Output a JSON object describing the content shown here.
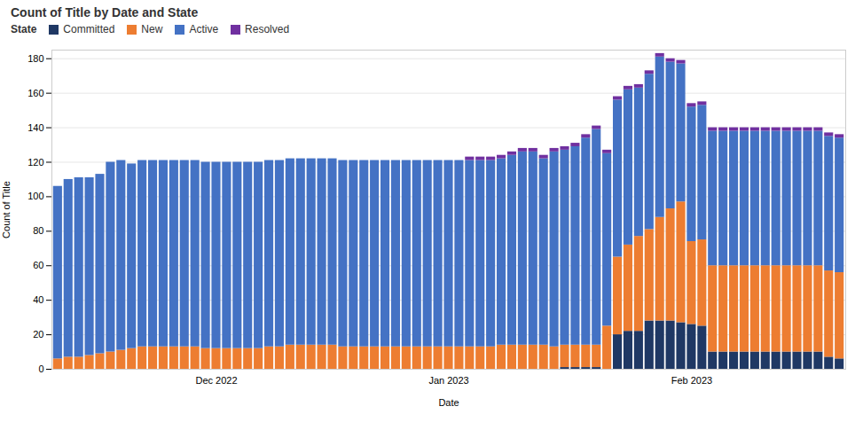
{
  "chart_data": {
    "type": "bar",
    "stacked": true,
    "title": "Count of Title by Date and State",
    "xlabel": "Date",
    "ylabel": "Count of Title",
    "legend_title": "State",
    "legend": "top",
    "grid": true,
    "categories": [
      null,
      null,
      null,
      null,
      null,
      null,
      null,
      null,
      null,
      null,
      null,
      null,
      null,
      null,
      null,
      "Dec 2022",
      null,
      null,
      null,
      null,
      null,
      null,
      null,
      null,
      null,
      null,
      null,
      null,
      null,
      null,
      null,
      null,
      null,
      null,
      null,
      null,
      null,
      "Jan 2023",
      null,
      null,
      null,
      null,
      null,
      null,
      null,
      null,
      null,
      null,
      null,
      null,
      null,
      null,
      null,
      null,
      null,
      null,
      null,
      null,
      null,
      null,
      "Feb 2023",
      null,
      null,
      null,
      null,
      null,
      null,
      null,
      null,
      null,
      null,
      null,
      null,
      null,
      null
    ],
    "ylim": [
      0,
      185
    ],
    "yticks": [
      0,
      20,
      40,
      60,
      80,
      100,
      120,
      140,
      160,
      180
    ],
    "series": [
      {
        "name": "Committed",
        "color": "#1F3864",
        "values": [
          0,
          0,
          0,
          0,
          0,
          0,
          0,
          0,
          0,
          0,
          0,
          0,
          0,
          0,
          0,
          0,
          0,
          0,
          0,
          0,
          0,
          0,
          0,
          0,
          0,
          0,
          0,
          0,
          0,
          0,
          0,
          0,
          0,
          0,
          0,
          0,
          0,
          0,
          0,
          0,
          0,
          0,
          0,
          0,
          0,
          0,
          0,
          0,
          1,
          1,
          1,
          1,
          0,
          20,
          22,
          22,
          28,
          28,
          28,
          27,
          26,
          25,
          10,
          10,
          10,
          10,
          10,
          10,
          10,
          10,
          10,
          10,
          10,
          7,
          6
        ]
      },
      {
        "name": "New",
        "color": "#ED7D31",
        "values": [
          6,
          7,
          7,
          8,
          9,
          10,
          11,
          12,
          13,
          13,
          13,
          13,
          13,
          13,
          12,
          12,
          12,
          12,
          12,
          12,
          13,
          13,
          14,
          14,
          14,
          14,
          14,
          13,
          13,
          13,
          13,
          13,
          13,
          13,
          13,
          13,
          13,
          13,
          13,
          13,
          13,
          13,
          14,
          14,
          14,
          14,
          14,
          13,
          13,
          13,
          13,
          13,
          25,
          45,
          50,
          55,
          53,
          60,
          65,
          70,
          48,
          50,
          50,
          50,
          50,
          50,
          50,
          50,
          50,
          50,
          50,
          50,
          50,
          50,
          50
        ]
      },
      {
        "name": "Active",
        "color": "#4472C4",
        "values": [
          100,
          103,
          104,
          103,
          104,
          110,
          110,
          107,
          108,
          108,
          108,
          108,
          108,
          108,
          108,
          108,
          108,
          108,
          108,
          108,
          108,
          108,
          108,
          108,
          108,
          108,
          108,
          108,
          108,
          108,
          108,
          108,
          108,
          108,
          108,
          108,
          108,
          108,
          108,
          108,
          108,
          108,
          108,
          110,
          112,
          112,
          108,
          113,
          113,
          115,
          120,
          125,
          100,
          91,
          90,
          86,
          90,
          93,
          85,
          80,
          78,
          78,
          78,
          78,
          78,
          78,
          78,
          78,
          78,
          78,
          78,
          78,
          78,
          78,
          78
        ]
      },
      {
        "name": "Resolved",
        "color": "#7030A0",
        "values": [
          0,
          0,
          0,
          0,
          0,
          0,
          0,
          0,
          0,
          0,
          0,
          0,
          0,
          0,
          0,
          0,
          0,
          0,
          0,
          0,
          0,
          0,
          0,
          0,
          0,
          0,
          0,
          0,
          0,
          0,
          0,
          0,
          0,
          0,
          0,
          0,
          0,
          0,
          0,
          2,
          2,
          2,
          2,
          2,
          2,
          2,
          2,
          2,
          2,
          2,
          2,
          2,
          2,
          2,
          2,
          2,
          2,
          2,
          2,
          2,
          2,
          2,
          2,
          2,
          2,
          2,
          2,
          2,
          2,
          2,
          2,
          2,
          2,
          2,
          2
        ]
      }
    ]
  }
}
